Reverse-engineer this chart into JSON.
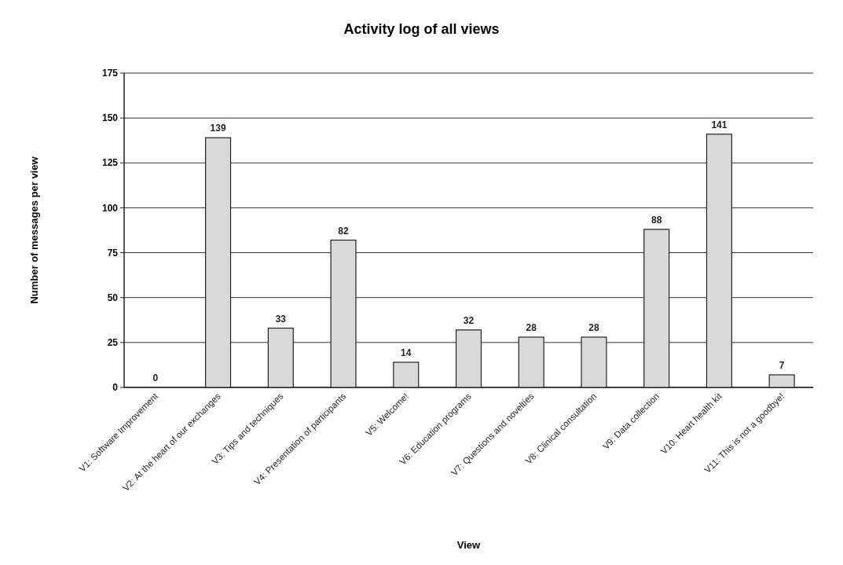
{
  "chart_data": {
    "type": "bar",
    "title": "Activity log of all views",
    "xlabel": "View",
    "ylabel": "Number of messages per view",
    "categories": [
      "V1: Software Improvement",
      "V2: At the heart of our exchanges",
      "V3: Tips and techniques",
      "V4: Presentation of participants",
      "V5: Welcome!",
      "V6: Education programs",
      "V7: Questions and novelties",
      "V8: Clinical consultation",
      "V9: Data collection",
      "V10: Heart health kit",
      "V11: This is not a goodbye!"
    ],
    "values": [
      0,
      139,
      33,
      82,
      14,
      32,
      28,
      28,
      88,
      141,
      7
    ],
    "color": "#d9d9d9",
    "ylim": [
      0,
      175
    ],
    "yticks": [
      0,
      25,
      50,
      75,
      100,
      125,
      150,
      175
    ],
    "grid": "y",
    "data_labels": true
  }
}
